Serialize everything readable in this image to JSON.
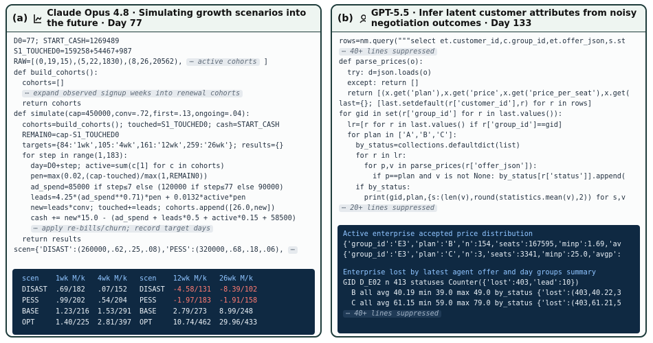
{
  "panels": [
    {
      "label": "(a)",
      "title": "Claude Opus 4.8 · Simulating growth scenarios into the future · Day 77",
      "code": [
        "D0=77; START_CASH=1269489",
        "S1_TOUCHED0=159258+54467+987",
        [
          "RAW=[(0,19,15),(5,22,1830),(8,26,20562), ",
          {
            "note": "⋯ active cohorts"
          },
          " ]"
        ],
        "def build_cohorts():",
        "  cohorts=[]",
        [
          "  ",
          {
            "note": "⋯ expand observed signup weeks into renewal cohorts"
          }
        ],
        "  return cohorts",
        "def simulate(cap=450000,conv=.72,first=.13,ongoing=.04):",
        "  cohorts=build_cohorts(); touched=S1_TOUCHED0; cash=START_CASH",
        "  REMAIN0=cap-S1_TOUCHED0",
        "  targets={84:'1wk',105:'4wk',161:'12wk',259:'26wk'}; results={}",
        "  for step in range(1,183):",
        "    day=D0+step; active=sum(c[1] for c in cohorts)",
        "    pen=max(0.02,(cap-touched)/max(1,REMAIN0))",
        "    ad_spend=85000 if step≤7 else (120000 if step≤77 else 90000)",
        "    leads=4.25*(ad_spend**0.71)*pen + 0.0132*active*pen",
        "    new=leads*conv; touched+=leads; cohorts.append([26.0,new])",
        "    cash += new*15.0 - (ad_spend + leads*0.5 + active*0.15 + 58500)",
        [
          "    ",
          {
            "note": "⋯ apply re-bills/churn; record target days"
          }
        ],
        "  return results",
        [
          "scen={'DISAST':(260000,.62,.25,.08),'PESS':(320000,.68,.18,.06), ",
          {
            "note": "⋯"
          }
        ]
      ],
      "table": {
        "columns": [
          "scen",
          "1wk M/k",
          "4wk M/k",
          "scen",
          "12wk M/k",
          "26wk M/k"
        ],
        "rows": [
          [
            "DISAST",
            ".69/182",
            ".07/152",
            "DISAST",
            "-4.58/131",
            "-8.39/102"
          ],
          [
            "PESS",
            ".99/202",
            ".54/204",
            "PESS",
            "-1.97/183",
            "-1.91/158"
          ],
          [
            "BASE",
            "1.23/216",
            "1.53/291",
            "BASE",
            "2.79/273",
            "8.99/248"
          ],
          [
            "OPT",
            "1.40/225",
            "2.81/397",
            "OPT",
            "10.74/462",
            "29.96/433"
          ]
        ]
      }
    },
    {
      "label": "(b)",
      "title": "GPT-5.5 · Infer latent customer attributes from noisy negotiation outcomes · Day 133",
      "code": [
        "rows=nm.query(\"\"\"select et.customer_id,c.group_id,et.offer_json,s.st",
        [
          {
            "note": "⋯ 40+ lines suppressed"
          }
        ],
        "def parse_prices(o):",
        "  try: d=json.loads(o)",
        "  except: return []",
        "  return [(x.get('plan'),x.get('price',x.get('price_per_seat'),x.get(",
        "last={}; [last.setdefault(r['customer_id'],r) for r in rows]",
        "for gid in set(r['group_id'] for r in last.values()):",
        "  lr=[r for r in last.values() if r['group_id']==gid]",
        "  for plan in ['A','B','C']:",
        "    by_status=collections.defaultdict(list)",
        "    for r in lr:",
        "      for p,v in parse_prices(r['offer_json']):",
        "        if p==plan and v is not None: by_status[r['status']].append(",
        "    if by_status:",
        "      print(gid,plan,{s:(len(v),round(statistics.mean(v),2)) for s,v",
        [
          {
            "note": "⋯ 20+ lines suppressed"
          }
        ]
      ],
      "output": [
        {
          "text": "Active enterprise accepted price distribution",
          "heading": true
        },
        {
          "text": "{'group_id':'E3','plan':'B','n':154,'seats':167595,'minp':1.69,'av"
        },
        {
          "text": "{'group_id':'E3','plan':'C','n':3,'seats':3341,'minp':25.0,'avgp':"
        },
        {
          "text": "Enterprise lost by latest agent offer and day groups summary",
          "heading": true
        },
        {
          "text": "GID D_E02 n 413 statuses Counter({'lost':403,'lead':10})"
        },
        {
          "text": "  B all avg 40.19 min 39.0 max 49.0 by_status {'lost':(403,40.22,3"
        },
        {
          "text": "  C all avg 61.15 min 59.0 max 79.0 by_status {'lost':(403,61.21,5"
        },
        {
          "note": "⋯ 40+ lines suppressed"
        }
      ]
    }
  ]
}
